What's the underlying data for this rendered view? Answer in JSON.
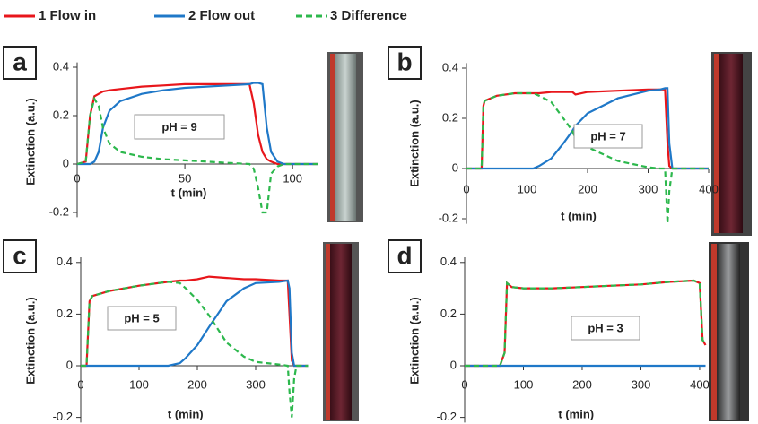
{
  "chart_data": [
    {
      "type": "line",
      "label": "a",
      "annotation": "pH = 9",
      "xlabel": "t (min)",
      "ylabel": "Extinction (a.u.)",
      "x": [
        0,
        4,
        6,
        8,
        10,
        12,
        15,
        20,
        30,
        40,
        50,
        60,
        70,
        80,
        82,
        84,
        86,
        88,
        90,
        93,
        96,
        100,
        112
      ],
      "xlim": [
        0,
        112
      ],
      "xticks": [
        0,
        50,
        100
      ],
      "ylim": [
        -0.22,
        0.42
      ],
      "yticks": [
        -0.2,
        0,
        0.2,
        0.4
      ],
      "series": [
        {
          "name": "1 Flow in",
          "color": "#e8161b",
          "values": [
            0,
            0.01,
            0.2,
            0.28,
            0.29,
            0.3,
            0.305,
            0.31,
            0.32,
            0.325,
            0.33,
            0.33,
            0.33,
            0.33,
            0.25,
            0.12,
            0.05,
            0.02,
            0.01,
            0,
            0,
            0,
            0
          ]
        },
        {
          "name": "2 Flow out",
          "color": "#1f78c8",
          "values": [
            0,
            0,
            0,
            0.01,
            0.05,
            0.15,
            0.22,
            0.26,
            0.29,
            0.305,
            0.315,
            0.32,
            0.325,
            0.33,
            0.335,
            0.335,
            0.33,
            0.15,
            0.05,
            0.01,
            0,
            0,
            0
          ]
        },
        {
          "name": "3 Difference",
          "color": "#2db84d",
          "dashed": true,
          "values": [
            0,
            0.01,
            0.2,
            0.27,
            0.24,
            0.15,
            0.085,
            0.05,
            0.03,
            0.02,
            0.015,
            0.01,
            0.005,
            0,
            -0.02,
            -0.1,
            -0.2,
            -0.2,
            -0.04,
            -0.01,
            0,
            0,
            0
          ]
        }
      ]
    },
    {
      "type": "line",
      "label": "b",
      "annotation": "pH = 7",
      "xlabel": "t (min)",
      "ylabel": "Extinction (a.u.)",
      "x": [
        0,
        25,
        28,
        30,
        50,
        80,
        100,
        110,
        120,
        140,
        160,
        175,
        180,
        200,
        250,
        300,
        320,
        328,
        332,
        335,
        340,
        360,
        400
      ],
      "xlim": [
        0,
        400
      ],
      "xticks": [
        0,
        100,
        200,
        300,
        400
      ],
      "ylim": [
        -0.22,
        0.42
      ],
      "yticks": [
        -0.2,
        0,
        0.2,
        0.4
      ],
      "series": [
        {
          "color": "#e8161b",
          "values": [
            0,
            0,
            0.25,
            0.27,
            0.29,
            0.3,
            0.3,
            0.3,
            0.3,
            0.305,
            0.305,
            0.305,
            0.295,
            0.305,
            0.31,
            0.315,
            0.315,
            0.315,
            0.1,
            0.01,
            0,
            0,
            0
          ]
        },
        {
          "color": "#1f78c8",
          "values": [
            0,
            0,
            0,
            0,
            0,
            0,
            0,
            0,
            0.01,
            0.04,
            0.1,
            0.15,
            0.17,
            0.22,
            0.28,
            0.31,
            0.315,
            0.32,
            0.32,
            0.1,
            0,
            0,
            0
          ]
        },
        {
          "color": "#2db84d",
          "dashed": true,
          "values": [
            0,
            0,
            0.25,
            0.27,
            0.29,
            0.3,
            0.3,
            0.3,
            0.29,
            0.265,
            0.2,
            0.15,
            0.12,
            0.085,
            0.03,
            0.005,
            0,
            0,
            -0.22,
            -0.09,
            0,
            0,
            0
          ]
        }
      ]
    },
    {
      "type": "line",
      "label": "c",
      "annotation": "pH = 5",
      "xlabel": "t (min)",
      "ylabel": "Extinction (a.u.)",
      "x": [
        0,
        10,
        15,
        20,
        50,
        100,
        150,
        170,
        180,
        200,
        220,
        250,
        280,
        300,
        340,
        355,
        358,
        362,
        366,
        370,
        390
      ],
      "xlim": [
        0,
        390
      ],
      "xticks": [
        0,
        100,
        200,
        300
      ],
      "ylim": [
        -0.22,
        0.42
      ],
      "yticks": [
        -0.2,
        0,
        0.2,
        0.4
      ],
      "series": [
        {
          "color": "#e8161b",
          "values": [
            0,
            0,
            0.25,
            0.27,
            0.29,
            0.31,
            0.325,
            0.33,
            0.33,
            0.335,
            0.345,
            0.34,
            0.335,
            0.335,
            0.33,
            0.33,
            0.2,
            0.02,
            0,
            0,
            0
          ]
        },
        {
          "color": "#1f78c8",
          "values": [
            0,
            0,
            0,
            0,
            0,
            0,
            0,
            0.01,
            0.03,
            0.08,
            0.15,
            0.25,
            0.3,
            0.32,
            0.325,
            0.33,
            0.3,
            0.05,
            0,
            0,
            0
          ]
        },
        {
          "color": "#2db84d",
          "dashed": true,
          "values": [
            0,
            0,
            0.25,
            0.27,
            0.29,
            0.31,
            0.325,
            0.32,
            0.3,
            0.255,
            0.195,
            0.09,
            0.035,
            0.015,
            0.005,
            0,
            -0.1,
            -0.2,
            -0.05,
            0,
            0
          ]
        }
      ]
    },
    {
      "type": "line",
      "label": "d",
      "annotation": "pH = 3",
      "xlabel": "t (min)",
      "ylabel": "Extinction (a.u.)",
      "x": [
        0,
        60,
        68,
        72,
        80,
        100,
        150,
        200,
        250,
        300,
        350,
        390,
        400,
        405,
        410
      ],
      "xlim": [
        0,
        410
      ],
      "xticks": [
        0,
        100,
        200,
        300,
        400
      ],
      "ylim": [
        -0.22,
        0.42
      ],
      "yticks": [
        -0.2,
        0,
        0.2,
        0.4
      ],
      "series": [
        {
          "color": "#e8161b",
          "values": [
            0,
            0,
            0.05,
            0.32,
            0.305,
            0.3,
            0.3,
            0.305,
            0.31,
            0.315,
            0.325,
            0.33,
            0.32,
            0.1,
            0.08
          ]
        },
        {
          "color": "#1f78c8",
          "values": [
            0,
            0,
            0,
            0,
            0,
            0,
            0,
            0,
            0,
            0,
            0,
            0,
            0,
            0,
            0
          ]
        },
        {
          "color": "#2db84d",
          "dashed": true,
          "values": [
            0,
            0,
            0.05,
            0.32,
            0.305,
            0.3,
            0.3,
            0.305,
            0.31,
            0.315,
            0.325,
            0.33,
            0.32,
            0.1,
            0.08
          ]
        }
      ]
    }
  ]
}
